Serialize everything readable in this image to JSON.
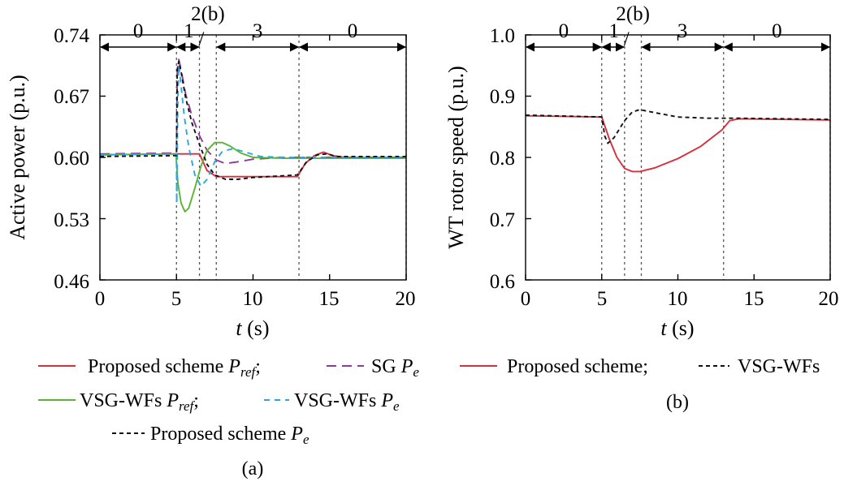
{
  "chart_data": [
    {
      "type": "line",
      "panel": "(a)",
      "xlabel_italic": "t",
      "xlabel_unit": " (s)",
      "ylabel": "Active power (p.u.)",
      "xlim": [
        0,
        20
      ],
      "ylim": [
        0.46,
        0.74
      ],
      "xticks": [
        "0",
        "5",
        "10",
        "15",
        "20"
      ],
      "yticks": [
        "0.46",
        "0.53",
        "0.60",
        "0.67",
        "0.74"
      ],
      "phase_boundaries": [
        5,
        6.5,
        7.6,
        13,
        20
      ],
      "phase_labels": [
        {
          "text": "0",
          "x": 2.5
        },
        {
          "text": "1",
          "x": 5.8
        },
        {
          "text": "3",
          "x": 10.3
        },
        {
          "text": "0",
          "x": 16.5
        }
      ],
      "phase_note": "2(b)",
      "phase_slash": "/",
      "series": [
        {
          "name": "Proposed scheme P_ref",
          "color": "#d62f3d",
          "dash": "",
          "points": [
            [
              0,
              0.603
            ],
            [
              4.98,
              0.604
            ],
            [
              5.0,
              0.604
            ],
            [
              6.5,
              0.604
            ],
            [
              7.0,
              0.585
            ],
            [
              7.6,
              0.578
            ],
            [
              9,
              0.578
            ],
            [
              12.9,
              0.578
            ],
            [
              13.4,
              0.593
            ],
            [
              14,
              0.602
            ],
            [
              14.6,
              0.606
            ],
            [
              15.2,
              0.602
            ],
            [
              16,
              0.6
            ],
            [
              20,
              0.6
            ]
          ]
        },
        {
          "name": "SG P_e",
          "color": "#8e3a98",
          "dash": "12 7",
          "points": [
            [
              0,
              0.604
            ],
            [
              5.0,
              0.605
            ],
            [
              5.05,
              0.7
            ],
            [
              5.15,
              0.712
            ],
            [
              5.3,
              0.7
            ],
            [
              5.6,
              0.672
            ],
            [
              6.0,
              0.648
            ],
            [
              6.5,
              0.625
            ],
            [
              7.0,
              0.608
            ],
            [
              7.6,
              0.597
            ],
            [
              8.2,
              0.593
            ],
            [
              9,
              0.595
            ],
            [
              10,
              0.598
            ],
            [
              12,
              0.6
            ],
            [
              20,
              0.6
            ]
          ]
        },
        {
          "name": "VSG-WFs P_ref",
          "color": "#5cb435",
          "dash": "",
          "points": [
            [
              0,
              0.603
            ],
            [
              4.97,
              0.604
            ],
            [
              5.0,
              0.593
            ],
            [
              5.1,
              0.57
            ],
            [
              5.3,
              0.548
            ],
            [
              5.55,
              0.538
            ],
            [
              5.8,
              0.542
            ],
            [
              6.2,
              0.565
            ],
            [
              6.6,
              0.59
            ],
            [
              7.0,
              0.608
            ],
            [
              7.5,
              0.617
            ],
            [
              8.0,
              0.617
            ],
            [
              8.5,
              0.613
            ],
            [
              9.2,
              0.605
            ],
            [
              10,
              0.6
            ],
            [
              12,
              0.599
            ],
            [
              20,
              0.599
            ]
          ]
        },
        {
          "name": "VSG-WFs P_e",
          "color": "#27a9e0",
          "dash": "7 6",
          "points": [
            [
              0,
              0.603
            ],
            [
              5.0,
              0.604
            ],
            [
              5.02,
              0.548
            ],
            [
              5.08,
              0.66
            ],
            [
              5.15,
              0.705
            ],
            [
              5.25,
              0.69
            ],
            [
              5.5,
              0.648
            ],
            [
              5.8,
              0.612
            ],
            [
              6.2,
              0.58
            ],
            [
              6.6,
              0.567
            ],
            [
              7.0,
              0.575
            ],
            [
              7.5,
              0.595
            ],
            [
              8,
              0.607
            ],
            [
              8.7,
              0.61
            ],
            [
              9.5,
              0.606
            ],
            [
              10.5,
              0.601
            ],
            [
              12,
              0.6
            ],
            [
              20,
              0.6
            ]
          ]
        },
        {
          "name": "Proposed scheme P_e",
          "color": "#111111",
          "dash": "5 4",
          "points": [
            [
              0,
              0.601
            ],
            [
              5.0,
              0.602
            ],
            [
              5.05,
              0.7
            ],
            [
              5.15,
              0.71
            ],
            [
              5.3,
              0.698
            ],
            [
              5.6,
              0.668
            ],
            [
              6.0,
              0.64
            ],
            [
              6.5,
              0.615
            ],
            [
              7.0,
              0.592
            ],
            [
              7.5,
              0.58
            ],
            [
              8.2,
              0.575
            ],
            [
              9,
              0.575
            ],
            [
              10,
              0.577
            ],
            [
              12.9,
              0.58
            ],
            [
              13.5,
              0.595
            ],
            [
              14.2,
              0.603
            ],
            [
              14.8,
              0.604
            ],
            [
              15.5,
              0.601
            ],
            [
              16.5,
              0.601
            ],
            [
              20,
              0.601
            ]
          ]
        }
      ]
    },
    {
      "type": "line",
      "panel": "(b)",
      "xlabel_italic": "t",
      "xlabel_unit": " (s)",
      "ylabel": "WT rotor speed (p.u.)",
      "xlim": [
        0,
        20
      ],
      "ylim": [
        0.6,
        1.0
      ],
      "xticks": [
        "0",
        "5",
        "10",
        "15",
        "20"
      ],
      "yticks": [
        "0.6",
        "0.7",
        "0.8",
        "0.9",
        "1.0"
      ],
      "phase_boundaries": [
        5,
        6.5,
        7.6,
        13,
        20
      ],
      "phase_labels": [
        {
          "text": "0",
          "x": 2.5
        },
        {
          "text": "1",
          "x": 5.8
        },
        {
          "text": "3",
          "x": 10.3
        },
        {
          "text": "0",
          "x": 16.5
        }
      ],
      "phase_note": "2(b)",
      "phase_slash": "/",
      "series": [
        {
          "name": "Proposed scheme",
          "color": "#d62f3d",
          "dash": "",
          "points": [
            [
              0,
              0.868
            ],
            [
              5.0,
              0.866
            ],
            [
              5.5,
              0.83
            ],
            [
              6.0,
              0.8
            ],
            [
              6.5,
              0.782
            ],
            [
              7.0,
              0.777
            ],
            [
              7.5,
              0.777
            ],
            [
              8.5,
              0.783
            ],
            [
              10,
              0.798
            ],
            [
              11.5,
              0.818
            ],
            [
              12.9,
              0.845
            ],
            [
              13.4,
              0.86
            ],
            [
              14,
              0.863
            ],
            [
              20,
              0.861
            ]
          ]
        },
        {
          "name": "VSG-WFs",
          "color": "#111111",
          "dash": "5 4",
          "points": [
            [
              0,
              0.869
            ],
            [
              5.0,
              0.866
            ],
            [
              5.2,
              0.835
            ],
            [
              5.4,
              0.823
            ],
            [
              5.8,
              0.832
            ],
            [
              6.5,
              0.86
            ],
            [
              7.0,
              0.874
            ],
            [
              7.5,
              0.878
            ],
            [
              8.5,
              0.873
            ],
            [
              10,
              0.866
            ],
            [
              12,
              0.864
            ],
            [
              14,
              0.864
            ],
            [
              20,
              0.862
            ]
          ]
        }
      ]
    }
  ],
  "legend_a": {
    "row1_name1": "Proposed scheme ",
    "row1_sym1": "P",
    "row1_sub1": "ref",
    "row1_sep": ";",
    "row1_name2": "SG ",
    "row1_sym2": "P",
    "row1_sub2": "e",
    "row2_name1": "VSG-WFs ",
    "row2_sym1": "P",
    "row2_sub1": "ref",
    "row2_sep": ";",
    "row2_name2": "VSG-WFs ",
    "row2_sym2": "P",
    "row2_sub2": "e",
    "row3_name": "Proposed scheme ",
    "row3_sym": "P",
    "row3_sub": "e"
  },
  "legend_b": {
    "item1": "Proposed scheme;",
    "item2": "VSG-WFs"
  },
  "captions": {
    "a": "(a)",
    "b": "(b)"
  }
}
